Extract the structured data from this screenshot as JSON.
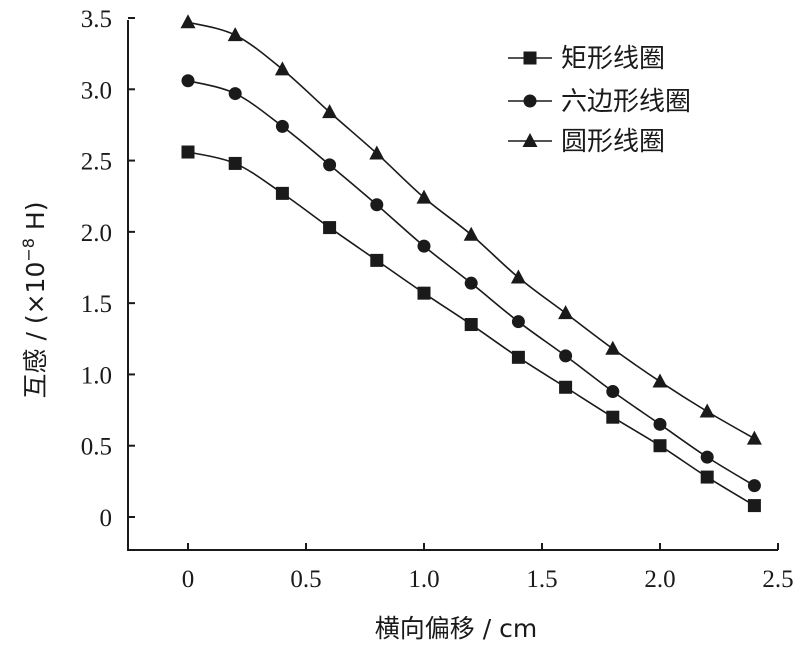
{
  "chart_data": {
    "type": "line",
    "xlabel": "横向偏移 / cm",
    "ylabel": "互感 / (×10",
    "ylabel_exp": "−8",
    "ylabel_unit": " H)",
    "xlim": [
      -0.25,
      2.5
    ],
    "ylim": [
      -0.25,
      3.5
    ],
    "x_ticks": [
      0,
      0.5,
      1.0,
      1.5,
      2.0,
      2.5
    ],
    "x_tick_labels": [
      "0",
      "0.5",
      "1.0",
      "1.5",
      "2.0",
      "2.5"
    ],
    "y_ticks": [
      0,
      0.5,
      1.0,
      1.5,
      2.0,
      2.5,
      3.0,
      3.5
    ],
    "y_tick_labels": [
      "0",
      "0.5",
      "1.0",
      "1.5",
      "2.0",
      "2.5",
      "3.0",
      "3.5"
    ],
    "grid": false,
    "legend_position": "top-right",
    "x": [
      0,
      0.2,
      0.4,
      0.6,
      0.8,
      1.0,
      1.2,
      1.4,
      1.6,
      1.8,
      2.0,
      2.2,
      2.4
    ],
    "series": [
      {
        "name": "矩形线圈",
        "marker": "square",
        "values": [
          2.56,
          2.48,
          2.27,
          2.03,
          1.8,
          1.57,
          1.35,
          1.12,
          0.91,
          0.7,
          0.5,
          0.28,
          0.08
        ]
      },
      {
        "name": "六边形线圈",
        "marker": "circle",
        "values": [
          3.06,
          2.97,
          2.74,
          2.47,
          2.19,
          1.9,
          1.64,
          1.37,
          1.13,
          0.88,
          0.65,
          0.42,
          0.22
        ]
      },
      {
        "name": "圆形线圈",
        "marker": "triangle",
        "values": [
          3.47,
          3.38,
          3.14,
          2.84,
          2.55,
          2.24,
          1.98,
          1.68,
          1.43,
          1.18,
          0.95,
          0.74,
          0.55
        ]
      }
    ],
    "colors": {
      "ink": "#1a1a1a",
      "background": "#ffffff"
    }
  }
}
